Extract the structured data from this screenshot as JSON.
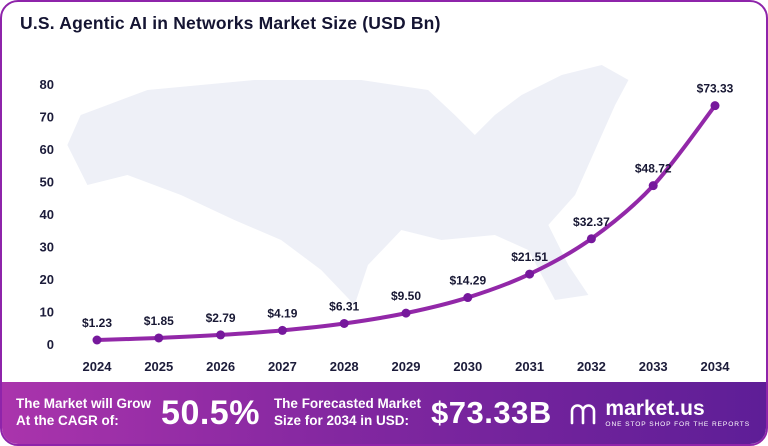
{
  "title": "U.S. Agentic AI in Networks Market Size (USD Bn)",
  "chart_data": {
    "type": "line",
    "x": [
      "2024",
      "2025",
      "2026",
      "2027",
      "2028",
      "2029",
      "2030",
      "2031",
      "2032",
      "2033",
      "2034"
    ],
    "values": [
      1.23,
      1.85,
      2.79,
      4.19,
      6.31,
      9.5,
      14.29,
      21.51,
      32.37,
      48.72,
      73.33
    ],
    "point_labels": [
      "$1.23",
      "$1.85",
      "$2.79",
      "$4.19",
      "$6.31",
      "$9.50",
      "$14.29",
      "$21.51",
      "$32.37",
      "$48.72",
      "$73.33"
    ],
    "title": "U.S. Agentic AI in Networks Market Size (USD Bn)",
    "xlabel": "",
    "ylabel": "",
    "ylim": [
      0,
      80
    ],
    "yticks": [
      0,
      10,
      20,
      30,
      40,
      50,
      60,
      70,
      80
    ],
    "grid": "off",
    "legend": "none",
    "line_color": "#9228a8",
    "point_color": "#76189c"
  },
  "colors": {
    "border": "#8e24aa",
    "footer_gradient_start": "#aa34ac",
    "footer_gradient_end": "#5e1e97",
    "map_fill": "#eef0f7",
    "text_dark": "#141432",
    "text_light": "#ffffff"
  },
  "footer": {
    "cagr_label": "The Market will Grow\nAt the CAGR of:",
    "cagr_value": "50.5%",
    "forecast_label": "The Forecasted Market\nSize for 2034 in USD:",
    "forecast_value": "$73.33B",
    "brand": "market.us",
    "brand_tagline": "ONE STOP SHOP FOR THE REPORTS"
  }
}
